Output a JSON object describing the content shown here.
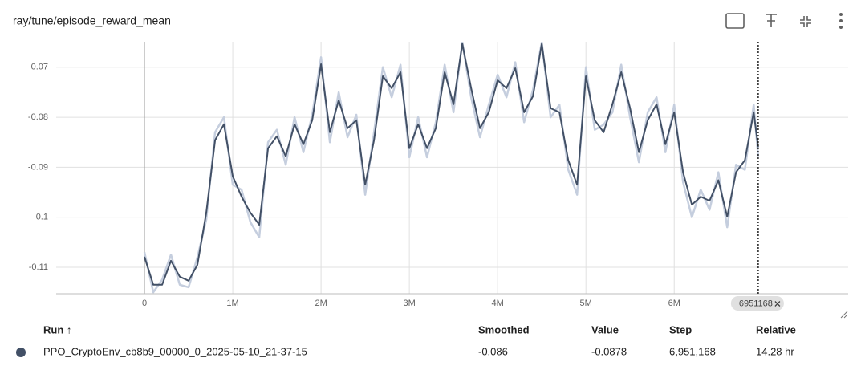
{
  "header": {
    "title": "ray/tune/episode_reward_mean"
  },
  "chart_data": {
    "type": "line",
    "x": [
      0,
      100000,
      200000,
      300000,
      400000,
      500000,
      600000,
      700000,
      800000,
      900000,
      1000000,
      1100000,
      1200000,
      1300000,
      1400000,
      1500000,
      1600000,
      1700000,
      1800000,
      1900000,
      2000000,
      2100000,
      2200000,
      2300000,
      2400000,
      2500000,
      2600000,
      2700000,
      2800000,
      2900000,
      3000000,
      3100000,
      3200000,
      3300000,
      3400000,
      3500000,
      3600000,
      3700000,
      3800000,
      3900000,
      4000000,
      4100000,
      4200000,
      4300000,
      4400000,
      4500000,
      4600000,
      4700000,
      4800000,
      4900000,
      5000000,
      5100000,
      5200000,
      5300000,
      5400000,
      5500000,
      5600000,
      5700000,
      5800000,
      5900000,
      6000000,
      6100000,
      6200000,
      6300000,
      6400000,
      6500000,
      6600000,
      6700000,
      6800000,
      6900000,
      6951168
    ],
    "series": [
      {
        "color": "#c5cede",
        "values": [
          -0.107,
          -0.115,
          -0.1125,
          -0.1075,
          -0.1135,
          -0.114,
          -0.108,
          -0.1005,
          -0.083,
          -0.08,
          -0.0935,
          -0.0945,
          -0.101,
          -0.104,
          -0.085,
          -0.0825,
          -0.0895,
          -0.08,
          -0.087,
          -0.0795,
          -0.068,
          -0.085,
          -0.075,
          -0.084,
          -0.0795,
          -0.0955,
          -0.083,
          -0.07,
          -0.076,
          -0.0695,
          -0.088,
          -0.08,
          -0.088,
          -0.081,
          -0.0695,
          -0.079,
          -0.065,
          -0.076,
          -0.084,
          -0.0775,
          -0.0715,
          -0.076,
          -0.069,
          -0.081,
          -0.0745,
          -0.065,
          -0.08,
          -0.0775,
          -0.0905,
          -0.0955,
          -0.07,
          -0.0825,
          -0.0815,
          -0.079,
          -0.0695,
          -0.08,
          -0.089,
          -0.079,
          -0.076,
          -0.087,
          -0.0775,
          -0.093,
          -0.1,
          -0.0945,
          -0.0985,
          -0.091,
          -0.102,
          -0.0895,
          -0.0905,
          -0.0775,
          -0.0878
        ]
      },
      {
        "color": "#425066",
        "values": [
          -0.1079,
          -0.1135,
          -0.1135,
          -0.1087,
          -0.1119,
          -0.1127,
          -0.1095,
          -0.0991,
          -0.0846,
          -0.0814,
          -0.0918,
          -0.0959,
          -0.0991,
          -0.1015,
          -0.0862,
          -0.0838,
          -0.0878,
          -0.0814,
          -0.0854,
          -0.0806,
          -0.0694,
          -0.083,
          -0.0766,
          -0.0822,
          -0.0806,
          -0.0935,
          -0.0846,
          -0.0718,
          -0.0742,
          -0.071,
          -0.0862,
          -0.0814,
          -0.0862,
          -0.0822,
          -0.071,
          -0.0774,
          -0.0653,
          -0.0742,
          -0.0822,
          -0.079,
          -0.0726,
          -0.0742,
          -0.0702,
          -0.079,
          -0.0758,
          -0.0653,
          -0.0782,
          -0.079,
          -0.0886,
          -0.0935,
          -0.0718,
          -0.0806,
          -0.083,
          -0.0774,
          -0.071,
          -0.0782,
          -0.087,
          -0.0806,
          -0.0774,
          -0.0854,
          -0.079,
          -0.091,
          -0.0975,
          -0.0959,
          -0.0967,
          -0.0926,
          -0.0999,
          -0.091,
          -0.0886,
          -0.079,
          -0.086
        ]
      }
    ],
    "xlim": [
      -1000000,
      7970000
    ],
    "xticks": [
      0,
      {
        "value": 1000000,
        "label": "1M"
      },
      {
        "value": 2000000,
        "label": "2M"
      },
      {
        "value": 3000000,
        "label": "3M"
      },
      {
        "value": 4000000,
        "label": "4M"
      },
      {
        "value": 5000000,
        "label": "5M"
      },
      {
        "value": 6000000,
        "label": "6M"
      }
    ],
    "ylim": [
      -0.1153,
      -0.0649
    ],
    "yticks": [
      -0.11,
      -0.1,
      -0.09,
      -0.08,
      -0.07
    ],
    "grid": true,
    "cursor_x": 6951168
  },
  "table": {
    "columns": [
      "Run ↑",
      "Smoothed",
      "Value",
      "Step",
      "Relative"
    ],
    "rows": [
      [
        "PPO_CryptoEnv_cb8b9_00000_0_2025-05-10_21-37-15",
        "-0.086",
        "-0.0878",
        "6,951,168",
        "14.28 hr"
      ]
    ]
  }
}
